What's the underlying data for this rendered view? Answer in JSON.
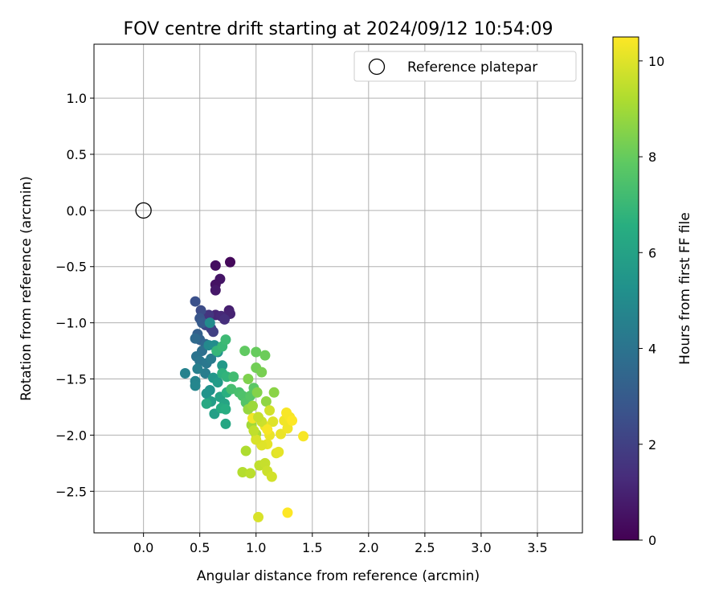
{
  "chart_data": {
    "type": "scatter",
    "title": "FOV centre drift starting at 2024/09/12 10:54:09",
    "xlabel": "Angular distance from reference (arcmin)",
    "ylabel": "Rotation from reference (arcmin)",
    "xlim": [
      -0.44,
      3.9
    ],
    "ylim": [
      -2.87,
      1.48
    ],
    "xticks": [
      0.0,
      0.5,
      1.0,
      1.5,
      2.0,
      2.5,
      3.0,
      3.5
    ],
    "xtick_labels": [
      "0.0",
      "0.5",
      "1.0",
      "1.5",
      "2.0",
      "2.5",
      "3.0",
      "3.5"
    ],
    "yticks": [
      -2.5,
      -2.0,
      -1.5,
      -1.0,
      -0.5,
      0.0,
      0.5,
      1.0
    ],
    "ytick_labels": [
      "−2.5",
      "−2.0",
      "−1.5",
      "−1.0",
      "−0.5",
      "0.0",
      "0.5",
      "1.0"
    ],
    "grid": true,
    "legend": {
      "placement": "top-right",
      "entries": [
        {
          "label": "Reference platepar",
          "marker": "open-circle"
        }
      ]
    },
    "reference_point": {
      "x": 0.0,
      "y": 0.0
    },
    "colorbar": {
      "label": "Hours from first FF file",
      "colormap": "viridis",
      "range": [
        0,
        10.5
      ],
      "ticks": [
        0,
        2,
        4,
        6,
        8,
        10
      ],
      "tick_labels": [
        "0",
        "2",
        "4",
        "6",
        "8",
        "10"
      ]
    },
    "points": [
      [
        0.77,
        -0.46,
        0.2
      ],
      [
        0.64,
        -0.49,
        0.4
      ],
      [
        0.68,
        -0.61,
        0.6
      ],
      [
        0.64,
        -0.66,
        0.5
      ],
      [
        0.64,
        -0.71,
        0.7
      ],
      [
        0.76,
        -0.89,
        0.9
      ],
      [
        0.77,
        -0.92,
        1.0
      ],
      [
        0.64,
        -0.93,
        1.1
      ],
      [
        0.69,
        -0.94,
        1.2
      ],
      [
        0.72,
        -0.97,
        1.4
      ],
      [
        0.58,
        -0.93,
        1.6
      ],
      [
        0.6,
        -1.05,
        1.8
      ],
      [
        0.62,
        -1.08,
        2.0
      ],
      [
        0.55,
        -1.02,
        2.2
      ],
      [
        0.51,
        -0.89,
        2.4
      ],
      [
        0.46,
        -0.81,
        2.6
      ],
      [
        0.5,
        -0.96,
        2.8
      ],
      [
        0.52,
        -1.0,
        3.0
      ],
      [
        0.48,
        -1.1,
        3.2
      ],
      [
        0.5,
        -1.15,
        3.3
      ],
      [
        0.55,
        -1.19,
        3.5
      ],
      [
        0.46,
        -1.14,
        3.6
      ],
      [
        0.52,
        -1.25,
        3.8
      ],
      [
        0.47,
        -1.3,
        4.0
      ],
      [
        0.5,
        -1.34,
        4.1
      ],
      [
        0.56,
        -1.36,
        4.2
      ],
      [
        0.6,
        -1.32,
        4.3
      ],
      [
        0.55,
        -1.45,
        4.4
      ],
      [
        0.48,
        -1.41,
        4.5
      ],
      [
        0.37,
        -1.45,
        4.6
      ],
      [
        0.46,
        -1.52,
        4.7
      ],
      [
        0.46,
        -1.56,
        4.8
      ],
      [
        0.58,
        -1.2,
        4.9
      ],
      [
        0.59,
        -1.0,
        5.0
      ],
      [
        0.63,
        -1.2,
        5.1
      ],
      [
        0.66,
        -1.26,
        5.2
      ],
      [
        0.59,
        -1.6,
        5.3
      ],
      [
        0.56,
        -1.63,
        5.4
      ],
      [
        0.62,
        -1.49,
        5.5
      ],
      [
        0.7,
        -1.38,
        5.6
      ],
      [
        0.66,
        -1.53,
        5.7
      ],
      [
        0.6,
        -1.7,
        5.8
      ],
      [
        0.63,
        -1.81,
        5.9
      ],
      [
        0.68,
        -1.66,
        6.0
      ],
      [
        0.72,
        -1.72,
        6.1
      ],
      [
        0.73,
        -1.9,
        6.2
      ],
      [
        0.56,
        -1.72,
        6.3
      ],
      [
        0.69,
        -1.76,
        6.4
      ],
      [
        0.73,
        -1.77,
        6.5
      ],
      [
        0.74,
        -1.62,
        6.6
      ],
      [
        0.7,
        -1.45,
        6.7
      ],
      [
        0.74,
        -1.48,
        6.8
      ],
      [
        0.65,
        -1.25,
        6.9
      ],
      [
        0.7,
        -1.21,
        7.0
      ],
      [
        0.73,
        -1.15,
        7.1
      ],
      [
        0.8,
        -1.48,
        7.2
      ],
      [
        0.78,
        -1.59,
        7.3
      ],
      [
        0.85,
        -1.62,
        7.4
      ],
      [
        0.88,
        -1.65,
        7.5
      ],
      [
        0.91,
        -1.71,
        7.6
      ],
      [
        0.95,
        -1.65,
        7.7
      ],
      [
        0.98,
        -1.58,
        7.8
      ],
      [
        0.9,
        -1.25,
        7.9
      ],
      [
        1.0,
        -1.26,
        8.0
      ],
      [
        1.08,
        -1.29,
        8.1
      ],
      [
        1.0,
        -1.4,
        8.2
      ],
      [
        1.05,
        -1.44,
        8.3
      ],
      [
        0.93,
        -1.5,
        8.4
      ],
      [
        1.01,
        -1.62,
        8.5
      ],
      [
        1.16,
        -1.62,
        8.6
      ],
      [
        1.09,
        -1.7,
        8.7
      ],
      [
        0.93,
        -1.77,
        8.8
      ],
      [
        0.97,
        -1.74,
        8.9
      ],
      [
        0.96,
        -1.91,
        9.0
      ],
      [
        1.0,
        -1.99,
        9.1
      ],
      [
        0.91,
        -2.14,
        9.2
      ],
      [
        0.88,
        -2.33,
        9.3
      ],
      [
        0.95,
        -2.34,
        9.4
      ],
      [
        1.03,
        -2.27,
        9.5
      ],
      [
        1.08,
        -2.25,
        9.6
      ],
      [
        1.1,
        -2.32,
        9.7
      ],
      [
        1.14,
        -2.37,
        9.8
      ],
      [
        1.02,
        -2.73,
        9.9
      ],
      [
        1.18,
        -2.16,
        10.0
      ],
      [
        1.2,
        -2.15,
        10.1
      ],
      [
        1.22,
        -1.99,
        10.2
      ],
      [
        1.28,
        -1.94,
        10.3
      ],
      [
        1.25,
        -1.87,
        10.3
      ],
      [
        1.27,
        -1.8,
        10.4
      ],
      [
        1.3,
        -1.84,
        10.4
      ],
      [
        1.32,
        -1.87,
        10.5
      ],
      [
        1.42,
        -2.01,
        10.4
      ],
      [
        1.28,
        -2.69,
        10.5
      ],
      [
        1.12,
        -2.0,
        10.2
      ],
      [
        1.1,
        -2.08,
        10.1
      ],
      [
        1.05,
        -2.09,
        10.0
      ],
      [
        1.0,
        -2.04,
        9.9
      ],
      [
        0.97,
        -1.85,
        10.3
      ],
      [
        1.08,
        -1.92,
        10.2
      ],
      [
        1.15,
        -1.88,
        10.0
      ],
      [
        1.12,
        -1.78,
        9.8
      ],
      [
        1.05,
        -1.88,
        9.7
      ],
      [
        1.1,
        -1.95,
        10.4
      ],
      [
        1.02,
        -1.84,
        9.6
      ],
      [
        0.98,
        -1.96,
        9.5
      ]
    ]
  }
}
